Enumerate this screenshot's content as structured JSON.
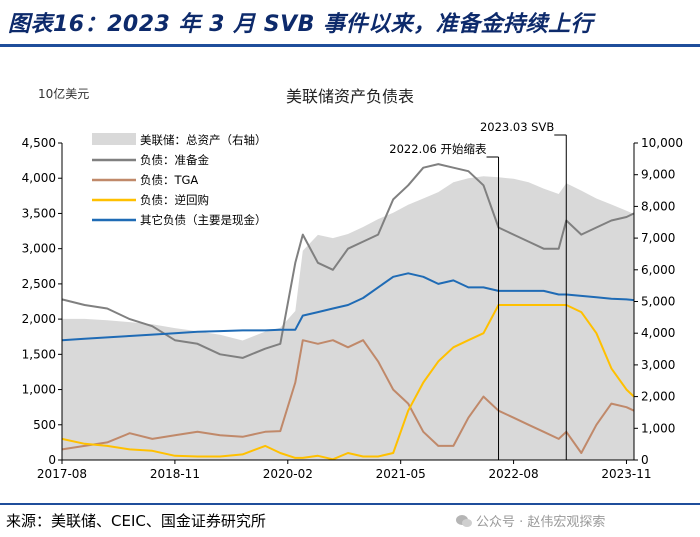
{
  "header": {
    "title": "图表16：2023 年 3 月 SVB 事件以来，准备金持续上行"
  },
  "source_text": "来源：美联储、CEIC、国金证券研究所",
  "watermark": "公众号 · 赵伟宏观探索",
  "colors": {
    "header_text": "#0d2a6b",
    "rule": "#1f4e9b",
    "area": "#d9d9d9",
    "reserves": "#808080",
    "tga": "#c0896a",
    "rrp": "#ffc000",
    "other": "#1f6bb5"
  },
  "chart_data": {
    "type": "line",
    "title": "美联储资产负债表",
    "unit_label": "10亿美元",
    "x_tick_labels": [
      "2017-08",
      "2018-11",
      "2020-02",
      "2021-05",
      "2022-08",
      "2023-11"
    ],
    "x_range": [
      "2017-08",
      "2023-12"
    ],
    "ylim_left": [
      0,
      4500
    ],
    "yticks_left": [
      "0",
      "500",
      "1,000",
      "1,500",
      "2,000",
      "2,500",
      "3,000",
      "3,500",
      "4,000",
      "4,500"
    ],
    "ylim_right": [
      0,
      10000
    ],
    "yticks_right": [
      "0",
      "1,000",
      "2,000",
      "3,000",
      "4,000",
      "5,000",
      "6,000",
      "7,000",
      "8,000",
      "9,000",
      "10,000"
    ],
    "grid": false,
    "legend_position": "top-left",
    "annotations": [
      {
        "text": "2022.06   开始缩表",
        "date": "2022-06"
      },
      {
        "text": "2023.03   SVB",
        "date": "2023-03"
      }
    ],
    "x": [
      "2017-08",
      "2017-11",
      "2018-02",
      "2018-05",
      "2018-08",
      "2018-11",
      "2019-02",
      "2019-05",
      "2019-08",
      "2019-11",
      "2020-01",
      "2020-03",
      "2020-04",
      "2020-06",
      "2020-08",
      "2020-10",
      "2020-12",
      "2021-02",
      "2021-04",
      "2021-06",
      "2021-08",
      "2021-10",
      "2021-12",
      "2022-02",
      "2022-04",
      "2022-06",
      "2022-08",
      "2022-10",
      "2022-12",
      "2023-02",
      "2023-03",
      "2023-05",
      "2023-07",
      "2023-09",
      "2023-11",
      "2023-12"
    ],
    "series": [
      {
        "name": "美联储：总资产（右轴）",
        "axis": "right",
        "style": "area",
        "values": [
          4450,
          4450,
          4410,
          4350,
          4280,
          4160,
          4060,
          3950,
          3770,
          4050,
          4170,
          4700,
          6600,
          7100,
          7000,
          7130,
          7350,
          7600,
          7800,
          8050,
          8250,
          8450,
          8760,
          8890,
          8950,
          8920,
          8870,
          8760,
          8560,
          8390,
          8730,
          8500,
          8250,
          8060,
          7860,
          7760
        ]
      },
      {
        "name": "负债：准备金",
        "axis": "left",
        "values": [
          2280,
          2200,
          2150,
          2000,
          1900,
          1700,
          1650,
          1500,
          1450,
          1580,
          1650,
          2800,
          3200,
          2800,
          2700,
          3000,
          3100,
          3200,
          3700,
          3900,
          4150,
          4200,
          4150,
          4100,
          3900,
          3300,
          3200,
          3100,
          3000,
          3000,
          3400,
          3200,
          3300,
          3400,
          3450,
          3500
        ]
      },
      {
        "name": "负债：TGA",
        "axis": "left",
        "values": [
          150,
          200,
          250,
          380,
          300,
          350,
          400,
          350,
          330,
          400,
          410,
          1100,
          1700,
          1650,
          1700,
          1600,
          1700,
          1400,
          1000,
          800,
          400,
          200,
          200,
          600,
          900,
          700,
          600,
          500,
          400,
          300,
          400,
          100,
          500,
          800,
          750,
          700
        ]
      },
      {
        "name": "负债：逆回购",
        "axis": "left",
        "values": [
          300,
          230,
          200,
          150,
          130,
          60,
          50,
          50,
          80,
          200,
          100,
          30,
          30,
          60,
          10,
          100,
          50,
          50,
          100,
          700,
          1100,
          1400,
          1600,
          1700,
          1800,
          2200,
          2200,
          2200,
          2200,
          2200,
          2200,
          2100,
          1800,
          1300,
          1000,
          900
        ]
      },
      {
        "name": "其它负债（主要是现金）",
        "axis": "left",
        "values": [
          1700,
          1720,
          1740,
          1760,
          1780,
          1800,
          1820,
          1830,
          1840,
          1840,
          1850,
          1850,
          2050,
          2100,
          2150,
          2200,
          2300,
          2450,
          2600,
          2650,
          2600,
          2500,
          2550,
          2450,
          2450,
          2400,
          2400,
          2400,
          2400,
          2350,
          2350,
          2330,
          2310,
          2290,
          2280,
          2270
        ]
      }
    ]
  }
}
